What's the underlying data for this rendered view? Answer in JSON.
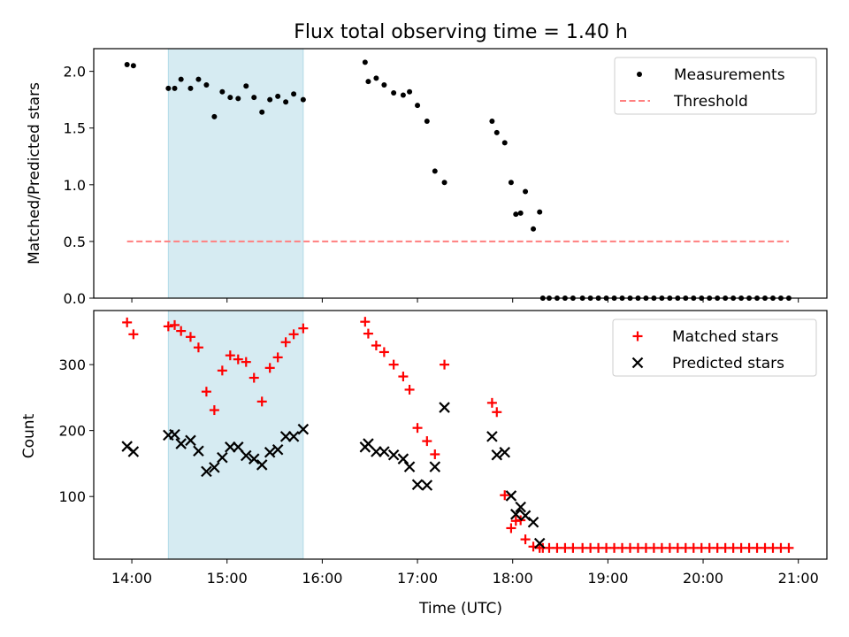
{
  "chart_data": [
    {
      "type": "scatter",
      "title": "Flux total observing time = 1.40 h",
      "xlabel": "",
      "ylabel": "Matched/Predicted stars",
      "xlim": [
        "13:36",
        "21:18"
      ],
      "ylim": [
        0,
        2.2
      ],
      "yticks": [
        0.0,
        0.5,
        1.0,
        1.5,
        2.0
      ],
      "ytick_labels": [
        "0.0",
        "0.5",
        "1.0",
        "1.5",
        "2.0"
      ],
      "highlight_span": {
        "start": "14:23",
        "end": "15:48",
        "color": "#add8e6"
      },
      "legend": {
        "position": "top-right",
        "entries": [
          "Measurements",
          "Threshold"
        ]
      },
      "series": [
        {
          "name": "Measurements",
          "marker": "dot",
          "color": "#000000",
          "x": [
            "13:57",
            "14:01",
            "14:23",
            "14:27",
            "14:31",
            "14:37",
            "14:42",
            "14:47",
            "14:52",
            "14:57",
            "15:02",
            "15:07",
            "15:12",
            "15:17",
            "15:22",
            "15:27",
            "15:32",
            "15:37",
            "15:42",
            "15:48",
            "16:27",
            "16:29",
            "16:34",
            "16:39",
            "16:45",
            "16:51",
            "16:55",
            "17:00",
            "17:06",
            "17:11",
            "17:17",
            "17:47",
            "17:50",
            "17:55",
            "17:59",
            "18:02",
            "18:05",
            "18:08",
            "18:13",
            "18:17",
            "18:19",
            "18:23",
            "18:28",
            "18:33",
            "18:38",
            "18:44",
            "18:49",
            "18:54",
            "18:59",
            "19:04",
            "19:09",
            "19:14",
            "19:19",
            "19:24",
            "19:29",
            "19:34",
            "19:39",
            "19:44",
            "19:49",
            "19:54",
            "19:59",
            "20:04",
            "20:09",
            "20:14",
            "20:19",
            "20:24",
            "20:29",
            "20:34",
            "20:39",
            "20:44",
            "20:49",
            "20:54"
          ],
          "y": [
            2.06,
            2.05,
            1.85,
            1.85,
            1.93,
            1.85,
            1.93,
            1.88,
            1.6,
            1.82,
            1.77,
            1.76,
            1.87,
            1.77,
            1.64,
            1.75,
            1.78,
            1.73,
            1.8,
            1.75,
            2.08,
            1.91,
            1.94,
            1.88,
            1.81,
            1.79,
            1.82,
            1.7,
            1.56,
            1.12,
            1.02,
            1.56,
            1.46,
            1.37,
            1.02,
            0.74,
            0.75,
            0.94,
            0.61,
            0.76,
            0,
            0,
            0,
            0,
            0,
            0,
            0,
            0,
            0,
            0,
            0,
            0,
            0,
            0,
            0,
            0,
            0,
            0,
            0,
            0,
            0,
            0,
            0,
            0,
            0,
            0,
            0,
            0,
            0,
            0,
            0,
            0
          ]
        },
        {
          "name": "Threshold",
          "style": "dashed",
          "color": "#ff7f7f",
          "x": [
            "13:57",
            "20:54"
          ],
          "y": [
            0.5,
            0.5
          ]
        }
      ]
    },
    {
      "type": "scatter",
      "title": "",
      "xlabel": "Time (UTC)",
      "ylabel": "Count",
      "xlim": [
        "13:36",
        "21:18"
      ],
      "ylim": [
        5,
        382
      ],
      "yticks": [
        100,
        200,
        300
      ],
      "ytick_labels": [
        "100",
        "200",
        "300"
      ],
      "xticks": [
        "14:00",
        "15:00",
        "16:00",
        "17:00",
        "18:00",
        "19:00",
        "20:00",
        "21:00"
      ],
      "xtick_labels": [
        "14:00",
        "15:00",
        "16:00",
        "17:00",
        "18:00",
        "19:00",
        "20:00",
        "21:00"
      ],
      "highlight_span": {
        "start": "14:23",
        "end": "15:48",
        "color": "#add8e6"
      },
      "legend": {
        "position": "top-right",
        "entries": [
          "Matched stars",
          "Predicted stars"
        ]
      },
      "series": [
        {
          "name": "Matched stars",
          "marker": "plus",
          "color": "#ff0000",
          "x": [
            "13:57",
            "14:01",
            "14:23",
            "14:27",
            "14:31",
            "14:37",
            "14:42",
            "14:47",
            "14:52",
            "14:57",
            "15:02",
            "15:07",
            "15:12",
            "15:17",
            "15:22",
            "15:27",
            "15:32",
            "15:37",
            "15:42",
            "15:48",
            "16:27",
            "16:29",
            "16:34",
            "16:39",
            "16:45",
            "16:51",
            "16:55",
            "17:00",
            "17:06",
            "17:11",
            "17:17",
            "17:47",
            "17:50",
            "17:55",
            "17:59",
            "18:02",
            "18:05",
            "18:08",
            "18:13",
            "18:17",
            "18:19",
            "18:23",
            "18:28",
            "18:33",
            "18:38",
            "18:44",
            "18:49",
            "18:54",
            "18:59",
            "19:04",
            "19:09",
            "19:14",
            "19:19",
            "19:24",
            "19:29",
            "19:34",
            "19:39",
            "19:44",
            "19:49",
            "19:54",
            "19:59",
            "20:04",
            "20:09",
            "20:14",
            "20:19",
            "20:24",
            "20:29",
            "20:34",
            "20:39",
            "20:44",
            "20:49",
            "20:54"
          ],
          "y": [
            364,
            346,
            358,
            360,
            351,
            342,
            326,
            259,
            231,
            291,
            314,
            308,
            304,
            280,
            244,
            295,
            311,
            334,
            346,
            355,
            365,
            347,
            329,
            319,
            300,
            282,
            262,
            204,
            184,
            164,
            300,
            242,
            228,
            102,
            52,
            63,
            64,
            35,
            24,
            22,
            22,
            22,
            22,
            22,
            22,
            22,
            22,
            22,
            22,
            22,
            22,
            22,
            22,
            22,
            22,
            22,
            22,
            22,
            22,
            22,
            22,
            22,
            22,
            22,
            22,
            22,
            22,
            22,
            22,
            22,
            22,
            22
          ]
        },
        {
          "name": "Predicted stars",
          "marker": "x",
          "color": "#000000",
          "x": [
            "13:57",
            "14:01",
            "14:23",
            "14:27",
            "14:31",
            "14:37",
            "14:42",
            "14:47",
            "14:52",
            "14:57",
            "15:02",
            "15:07",
            "15:12",
            "15:17",
            "15:22",
            "15:27",
            "15:32",
            "15:37",
            "15:42",
            "15:48",
            "16:27",
            "16:29",
            "16:34",
            "16:39",
            "16:45",
            "16:51",
            "16:55",
            "17:00",
            "17:06",
            "17:11",
            "17:17",
            "17:47",
            "17:50",
            "17:55",
            "17:59",
            "18:02",
            "18:05",
            "18:08",
            "18:13",
            "18:17"
          ],
          "y": [
            176,
            168,
            193,
            194,
            180,
            185,
            169,
            138,
            144,
            159,
            175,
            175,
            162,
            157,
            148,
            167,
            171,
            191,
            191,
            202,
            175,
            180,
            168,
            168,
            163,
            157,
            145,
            118,
            117,
            145,
            235,
            191,
            163,
            167,
            101,
            73,
            84,
            71,
            61,
            29
          ]
        }
      ]
    }
  ]
}
